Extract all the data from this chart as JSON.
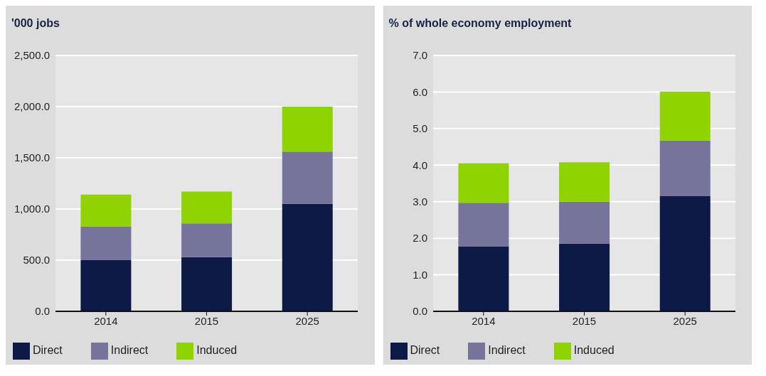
{
  "chart_data": [
    {
      "type": "bar",
      "ylabel": "'000 jobs",
      "categories": [
        "2014",
        "2015",
        "2025"
      ],
      "stacked": true,
      "series": [
        {
          "name": "Direct",
          "color": "#0d1a45",
          "values": [
            500,
            530,
            1050
          ]
        },
        {
          "name": "Indirect",
          "color": "#76749a",
          "values": [
            330,
            330,
            510
          ]
        },
        {
          "name": "Induced",
          "color": "#8fd400",
          "values": [
            310,
            310,
            440
          ]
        }
      ],
      "ylim": [
        0,
        2500
      ],
      "yticks": [
        {
          "value": 0,
          "label": "0.0"
        },
        {
          "value": 500,
          "label": "500.0"
        },
        {
          "value": 1000,
          "label": "1,000.0"
        },
        {
          "value": 1500,
          "label": "1,500.0"
        },
        {
          "value": 2000,
          "label": "2,000.0"
        },
        {
          "value": 2500,
          "label": "2,500.0"
        }
      ],
      "grid": "y",
      "legend": "bottom left"
    },
    {
      "type": "bar",
      "ylabel": "% of whole economy employment",
      "categories": [
        "2014",
        "2015",
        "2025"
      ],
      "stacked": true,
      "series": [
        {
          "name": "Direct",
          "color": "#0d1a45",
          "values": [
            1.78,
            1.85,
            3.15
          ]
        },
        {
          "name": "Indirect",
          "color": "#76749a",
          "values": [
            1.19,
            1.15,
            1.52
          ]
        },
        {
          "name": "Induced",
          "color": "#8fd400",
          "values": [
            1.08,
            1.08,
            1.34
          ]
        }
      ],
      "ylim": [
        0,
        7
      ],
      "yticks": [
        {
          "value": 0,
          "label": "0.0"
        },
        {
          "value": 1,
          "label": "1.0"
        },
        {
          "value": 2,
          "label": "2.0"
        },
        {
          "value": 3,
          "label": "3.0"
        },
        {
          "value": 4,
          "label": "4.0"
        },
        {
          "value": 5,
          "label": "5.0"
        },
        {
          "value": 6,
          "label": "6.0"
        },
        {
          "value": 7,
          "label": "7.0"
        }
      ],
      "grid": "y",
      "legend": "bottom left"
    }
  ]
}
